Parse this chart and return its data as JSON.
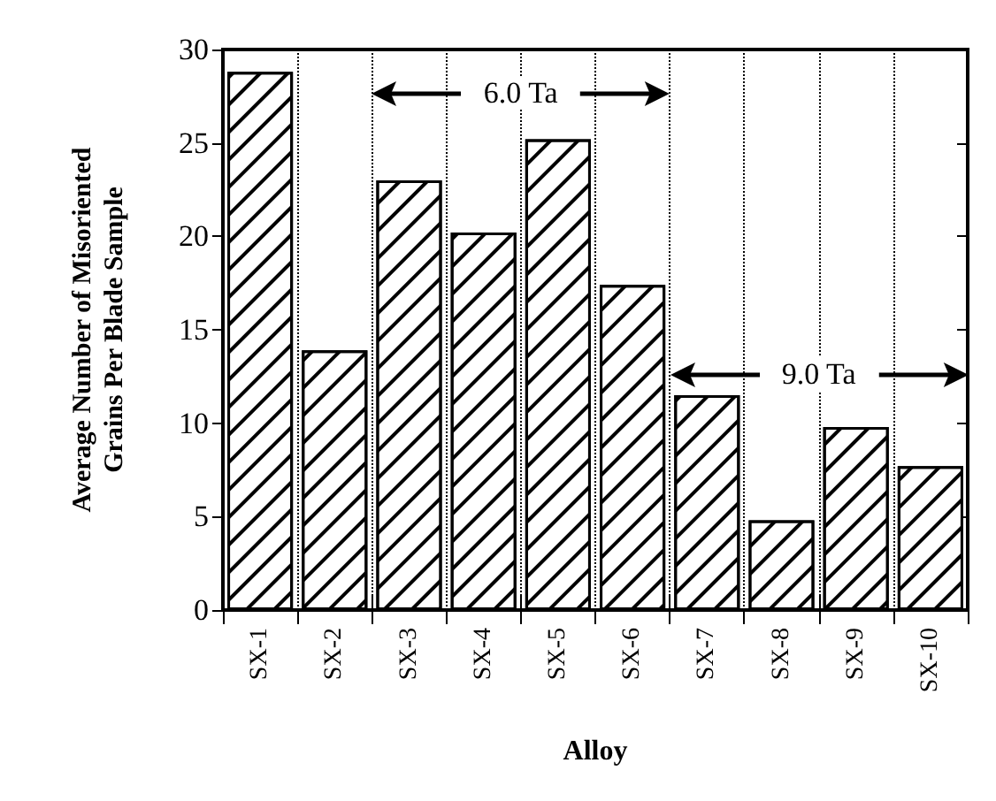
{
  "chart_data": {
    "type": "bar",
    "xlabel": "Alloy",
    "ylabel": "Average Number of Misoriented\nGrains Per Blade Sample",
    "categories": [
      "SX-1",
      "SX-2",
      "SX-3",
      "SX-4",
      "SX-5",
      "SX-6",
      "SX-7",
      "SX-8",
      "SX-9",
      "SX-10"
    ],
    "values": [
      28.8,
      13.9,
      23.0,
      20.2,
      25.2,
      17.4,
      11.5,
      4.8,
      9.8,
      7.7
    ],
    "color": "#ffffff",
    "ylim": [
      0,
      30
    ],
    "yticks": [
      0,
      5,
      10,
      15,
      20,
      25,
      30
    ],
    "grid": "x",
    "annotations": [
      "6.0 Ta",
      "9.0 Ta"
    ]
  }
}
